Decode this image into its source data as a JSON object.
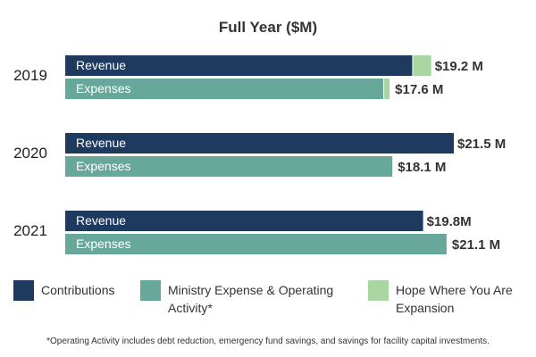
{
  "chart_data": {
    "type": "bar",
    "orientation": "horizontal",
    "title": "Full Year ($M)",
    "xlabel": "",
    "ylabel": "",
    "grid": false,
    "legend_position": "bottom",
    "categories": [
      "2019",
      "2020",
      "2021"
    ],
    "bar_labels": [
      "Revenue",
      "Expenses"
    ],
    "stacked": true,
    "bars": [
      {
        "year": "2019",
        "revenue": {
          "contributions": 19.2,
          "hope_expansion": 1.0,
          "label": "$19.2 M"
        },
        "expenses": {
          "ministry": 17.6,
          "hope_expansion": 0.3,
          "label": "$17.6 M"
        }
      },
      {
        "year": "2020",
        "revenue": {
          "contributions": 21.5,
          "hope_expansion": 0,
          "label": "$21.5 M"
        },
        "expenses": {
          "ministry": 18.1,
          "hope_expansion": 0,
          "label": "$18.1 M"
        }
      },
      {
        "year": "2021",
        "revenue": {
          "contributions": 19.8,
          "hope_expansion": 0,
          "label": "$19.8M"
        },
        "expenses": {
          "ministry": 21.1,
          "hope_expansion": 0,
          "label": "$21.1 M"
        }
      }
    ],
    "xlim": [
      0,
      21.5
    ],
    "legend": [
      {
        "key": "contributions",
        "lines": [
          "Contributions"
        ],
        "color": "#1e3a5f"
      },
      {
        "key": "ministry",
        "lines": [
          "Ministry Expense & Operating",
          "Activity*"
        ],
        "color": "#68a89a"
      },
      {
        "key": "hope_expansion",
        "lines": [
          "Hope Where You Are",
          "Expansion"
        ],
        "color": "#a8d5a0"
      }
    ],
    "footnote": "*Operating Activity includes debt reduction, emergency fund savings, and savings for facility capital investments."
  }
}
